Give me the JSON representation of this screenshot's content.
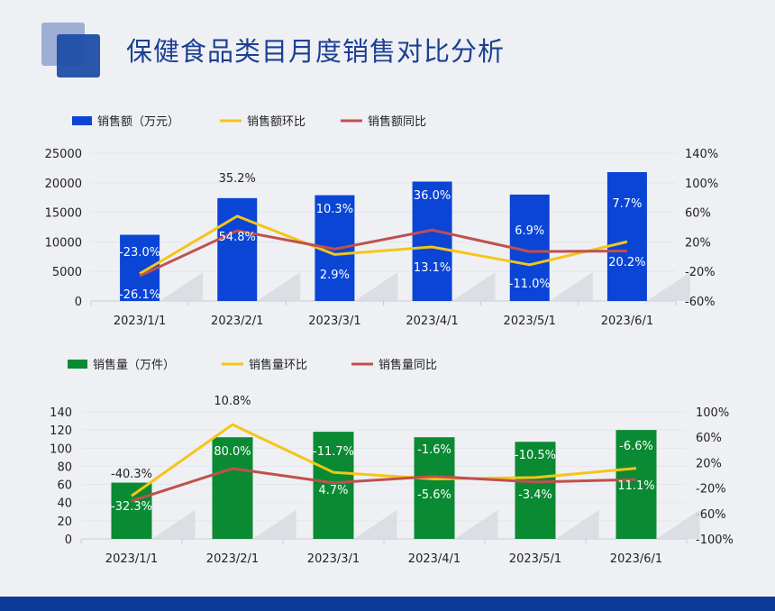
{
  "page": {
    "title": "保健食品类目月度销售对比分析"
  },
  "colors": {
    "sales_bar": "#0a45d6",
    "volume_bar": "#0a8a33",
    "mom_line": "#f5c518",
    "yoy_line": "#c0504d",
    "title": "#1d3f93",
    "footer": "#0c3a9a"
  },
  "chart_data": [
    {
      "type": "bar",
      "categories": [
        "2023/1/1",
        "2023/2/1",
        "2023/3/1",
        "2023/4/1",
        "2023/5/1",
        "2023/6/1"
      ],
      "legend_position": "top-left",
      "series": [
        {
          "name": "销售额（万元）",
          "type": "bar",
          "axis": "left",
          "values": [
            11200,
            17400,
            17900,
            20200,
            18000,
            21800
          ]
        },
        {
          "name": "销售额环比",
          "type": "line",
          "axis": "right",
          "values": [
            -23.0,
            54.8,
            2.9,
            13.1,
            -11.0,
            20.2
          ],
          "labels": [
            "-23.0%",
            "54.8%",
            "2.9%",
            "13.1%",
            "-11.0%",
            "20.2%"
          ]
        },
        {
          "name": "销售额同比",
          "type": "line",
          "axis": "right",
          "values": [
            -26.1,
            35.2,
            10.3,
            36.0,
            6.9,
            7.7
          ],
          "labels": [
            "-26.1%",
            "35.2%",
            "10.3%",
            "36.0%",
            "6.9%",
            "7.7%"
          ]
        }
      ],
      "left_axis": {
        "ylim": [
          0,
          25000
        ],
        "ticks": [
          "0",
          "5000",
          "10000",
          "15000",
          "20000",
          "25000"
        ]
      },
      "right_axis": {
        "ylim": [
          -60,
          140
        ],
        "ticks": [
          "-60%",
          "-20%",
          "20%",
          "60%",
          "100%",
          "140%"
        ]
      }
    },
    {
      "type": "bar",
      "categories": [
        "2023/1/1",
        "2023/2/1",
        "2023/3/1",
        "2023/4/1",
        "2023/5/1",
        "2023/6/1"
      ],
      "legend_position": "top-left",
      "series": [
        {
          "name": "销售量（万件）",
          "type": "bar",
          "axis": "left",
          "values": [
            62,
            112,
            118,
            112,
            107,
            120
          ]
        },
        {
          "name": "销售量环比",
          "type": "line",
          "axis": "right",
          "values": [
            -32.3,
            80.0,
            4.7,
            -5.6,
            -3.4,
            11.1
          ],
          "labels": [
            "-32.3%",
            "80.0%",
            "4.7%",
            "-5.6%",
            "-3.4%",
            "11.1%"
          ]
        },
        {
          "name": "销售量同比",
          "type": "line",
          "axis": "right",
          "values": [
            -40.3,
            10.8,
            -11.7,
            -1.6,
            -10.5,
            -6.6
          ],
          "labels": [
            "-40.3%",
            "10.8%",
            "-11.7%",
            "-1.6%",
            "-10.5%",
            "-6.6%"
          ]
        }
      ],
      "left_axis": {
        "ylim": [
          0,
          140
        ],
        "ticks": [
          "0",
          "20",
          "40",
          "60",
          "80",
          "100",
          "120",
          "140"
        ]
      },
      "right_axis": {
        "ylim": [
          -100,
          100
        ],
        "ticks": [
          "-100%",
          "-60%",
          "-20%",
          "20%",
          "60%",
          "100%"
        ]
      }
    }
  ]
}
